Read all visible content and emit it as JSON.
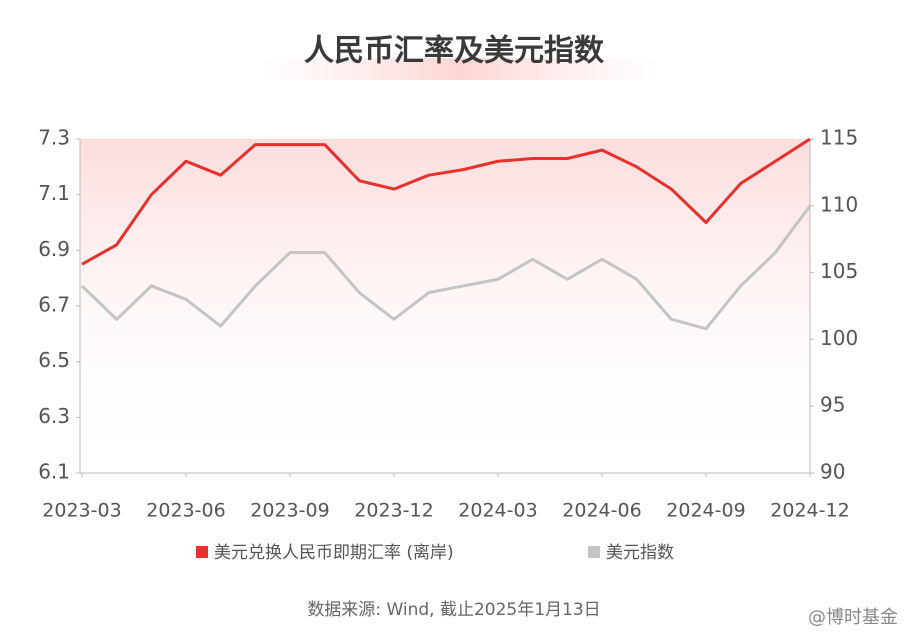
{
  "chart_data": {
    "type": "line",
    "title": "人民币汇率及美元指数",
    "x": [
      "2023-03",
      "2023-04",
      "2023-05",
      "2023-06",
      "2023-07",
      "2023-08",
      "2023-09",
      "2023-10",
      "2023-11",
      "2023-12",
      "2024-01",
      "2024-02",
      "2024-03",
      "2024-04",
      "2024-05",
      "2024-06",
      "2024-07",
      "2024-08",
      "2024-09",
      "2024-10",
      "2024-11",
      "2024-12"
    ],
    "xticks": [
      "2023-03",
      "2023-06",
      "2023-09",
      "2023-12",
      "2024-03",
      "2024-06",
      "2024-09",
      "2024-12"
    ],
    "series": [
      {
        "name": "美元兑换人民币即期汇率 (离岸)",
        "color": "#e8302c",
        "values": [
          6.85,
          6.92,
          7.1,
          7.22,
          7.17,
          7.28,
          7.28,
          7.28,
          7.15,
          7.12,
          7.17,
          7.19,
          7.22,
          7.23,
          7.23,
          7.26,
          7.2,
          7.12,
          7.0,
          7.14,
          7.22,
          7.3
        ]
      },
      {
        "name": "美元指数",
        "color": "#c4c4c4",
        "axis": "y2",
        "values": [
          104,
          101.5,
          104,
          103,
          101,
          104,
          106.5,
          106.5,
          103.5,
          101.5,
          103.5,
          104,
          104.5,
          106,
          104.5,
          106,
          104.5,
          101.5,
          100.8,
          104,
          106.5,
          110
        ]
      }
    ],
    "ylim": [
      6.1,
      7.3
    ],
    "yticks": [
      6.1,
      6.3,
      6.5,
      6.7,
      6.9,
      7.1,
      7.3
    ],
    "y2lim": [
      90,
      115
    ],
    "y2ticks": [
      90,
      95,
      100,
      105,
      110,
      115
    ],
    "source": "数据来源: Wind, 截止2025年1月13日",
    "watermark": "@博时基金"
  }
}
